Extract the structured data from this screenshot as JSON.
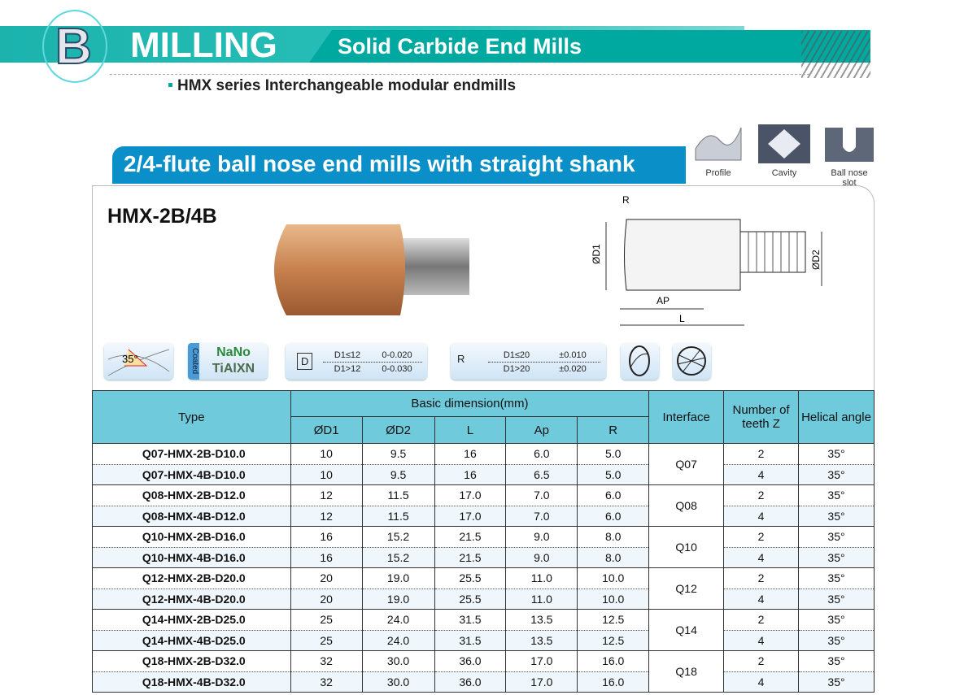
{
  "header": {
    "letter": "B",
    "title": "MILLING",
    "subtitle": "Solid Carbide End Mills",
    "series": "HMX series Interchangeable modular endmills"
  },
  "section": {
    "title": "2/4-flute ball nose end mills with straight shank",
    "model": "HMX-2B/4B"
  },
  "applications": [
    {
      "label": "Profile",
      "icon": "profile-icon"
    },
    {
      "label": "Cavity",
      "icon": "cavity-icon"
    },
    {
      "label": "Ball nose slot",
      "icon": "ball-nose-slot-icon"
    }
  ],
  "drawing": {
    "r": "R",
    "d1": "ØD1",
    "d2": "ØD2",
    "ap": "AP",
    "l": "L"
  },
  "badges": {
    "helix": "35°",
    "coated": "Coated",
    "nano": "NaNo",
    "coating": "TiAlXN",
    "d_tol": {
      "label": "D",
      "rows": [
        [
          "D1≤12",
          "0-0.020"
        ],
        [
          "D1>12",
          "0-0.030"
        ]
      ]
    },
    "r_tol": {
      "label": "R",
      "rows": [
        [
          "D1≤20",
          "±0.010"
        ],
        [
          "D1>20",
          "±0.020"
        ]
      ]
    }
  },
  "colors": {
    "teal": "#00a9a0",
    "blue": "#0a8fc8",
    "header": "#6fcbdc"
  },
  "table": {
    "headers": {
      "type": "Type",
      "basic": "Basic dimension(mm)",
      "d1": "ØD1",
      "d2": "ØD2",
      "l": "L",
      "ap": "Ap",
      "r": "R",
      "interface": "Interface",
      "teeth": "Number of teeth Z",
      "helical": "Helical angle"
    },
    "rows": [
      [
        "Q07-HMX-2B-D10.0",
        "10",
        "9.5",
        "16",
        "6.0",
        "5.0",
        "Q07",
        "2",
        "35°"
      ],
      [
        "Q07-HMX-4B-D10.0",
        "10",
        "9.5",
        "16",
        "6.5",
        "5.0",
        "Q07",
        "4",
        "35°"
      ],
      [
        "Q08-HMX-2B-D12.0",
        "12",
        "11.5",
        "17.0",
        "7.0",
        "6.0",
        "Q08",
        "2",
        "35°"
      ],
      [
        "Q08-HMX-4B-D12.0",
        "12",
        "11.5",
        "17.0",
        "7.0",
        "6.0",
        "Q08",
        "4",
        "35°"
      ],
      [
        "Q10-HMX-2B-D16.0",
        "16",
        "15.2",
        "21.5",
        "9.0",
        "8.0",
        "Q10",
        "2",
        "35°"
      ],
      [
        "Q10-HMX-4B-D16.0",
        "16",
        "15.2",
        "21.5",
        "9.0",
        "8.0",
        "Q10",
        "4",
        "35°"
      ],
      [
        "Q12-HMX-2B-D20.0",
        "20",
        "19.0",
        "25.5",
        "11.0",
        "10.0",
        "Q12",
        "2",
        "35°"
      ],
      [
        "Q12-HMX-4B-D20.0",
        "20",
        "19.0",
        "25.5",
        "11.0",
        "10.0",
        "Q12",
        "4",
        "35°"
      ],
      [
        "Q14-HMX-2B-D25.0",
        "25",
        "24.0",
        "31.5",
        "13.5",
        "12.5",
        "Q14",
        "2",
        "35°"
      ],
      [
        "Q14-HMX-4B-D25.0",
        "25",
        "24.0",
        "31.5",
        "13.5",
        "12.5",
        "Q14",
        "4",
        "35°"
      ],
      [
        "Q18-HMX-2B-D32.0",
        "32",
        "30.0",
        "36.0",
        "17.0",
        "16.0",
        "Q18",
        "2",
        "35°"
      ],
      [
        "Q18-HMX-4B-D32.0",
        "32",
        "30.0",
        "36.0",
        "17.0",
        "16.0",
        "Q18",
        "4",
        "35°"
      ]
    ]
  }
}
